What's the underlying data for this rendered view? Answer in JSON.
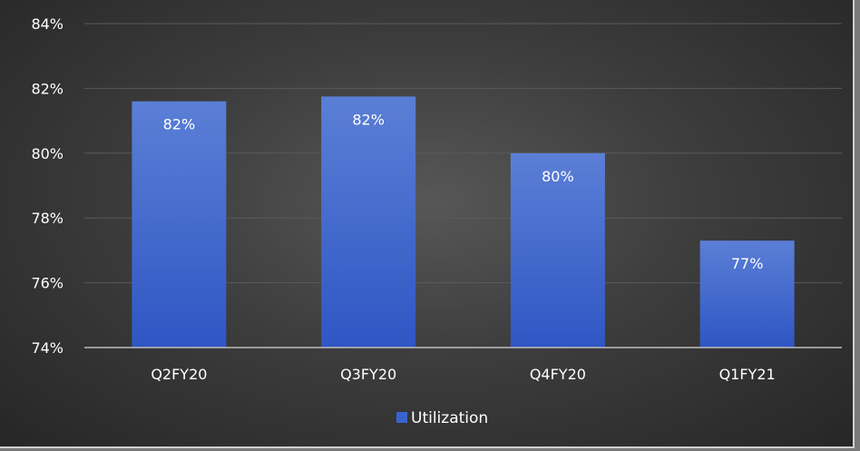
{
  "chart_data": {
    "type": "bar",
    "categories": [
      "Q2FY20",
      "Q3FY20",
      "Q4FY20",
      "Q1FY21"
    ],
    "series": [
      {
        "name": "Utilization",
        "values": [
          81.6,
          81.75,
          80.0,
          77.3
        ],
        "data_labels": [
          "82%",
          "82%",
          "80%",
          "77%"
        ]
      }
    ],
    "y_ticks": [
      74,
      76,
      78,
      80,
      82,
      84
    ],
    "y_tick_labels": [
      "74%",
      "76%",
      "78%",
      "80%",
      "82%",
      "84%"
    ],
    "ylim": [
      74,
      84
    ],
    "grid": true,
    "legend": "bottom",
    "colors": {
      "bar_top": "#5b7fd6",
      "bar_bottom": "#2f56c4",
      "grid": "#5a5a5a",
      "axis": "#bdbdbd",
      "legend_swatch": "#3a63d0"
    }
  }
}
